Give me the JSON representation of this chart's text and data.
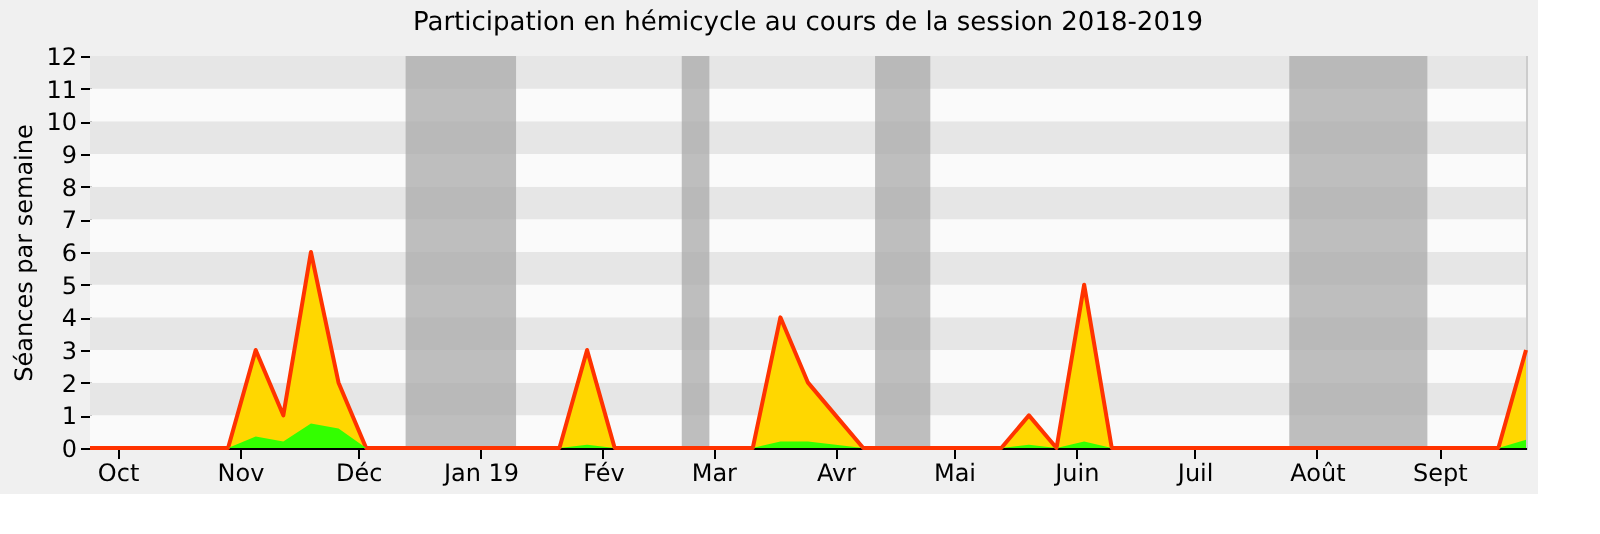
{
  "chart_data": {
    "type": "area",
    "title": "Participation en hémicycle au cours de la session 2018-2019",
    "ylabel": "Séances par semaine",
    "x": [
      "2018-09-24",
      "2018-10-01",
      "2018-10-08",
      "2018-10-15",
      "2018-10-22",
      "2018-10-29",
      "2018-11-05",
      "2018-11-12",
      "2018-11-19",
      "2018-11-26",
      "2018-12-03",
      "2018-12-10",
      "2018-12-17",
      "2018-12-24",
      "2018-12-31",
      "2019-01-07",
      "2019-01-14",
      "2019-01-21",
      "2019-01-28",
      "2019-02-04",
      "2019-02-11",
      "2019-02-18",
      "2019-02-25",
      "2019-03-04",
      "2019-03-11",
      "2019-03-18",
      "2019-03-25",
      "2019-04-01",
      "2019-04-08",
      "2019-04-15",
      "2019-04-22",
      "2019-04-29",
      "2019-05-06",
      "2019-05-13",
      "2019-05-20",
      "2019-05-27",
      "2019-06-03",
      "2019-06-10",
      "2019-06-17",
      "2019-06-24",
      "2019-07-01",
      "2019-07-08",
      "2019-07-15",
      "2019-07-22",
      "2019-07-29",
      "2019-08-05",
      "2019-08-12",
      "2019-08-19",
      "2019-08-26",
      "2019-09-02",
      "2019-09-09",
      "2019-09-16",
      "2019-09-23"
    ],
    "series": [
      {
        "color": "#ffd700",
        "values": [
          0,
          0,
          0,
          0,
          0,
          0,
          3,
          1,
          6,
          2,
          0,
          0,
          0,
          0,
          0,
          0,
          0,
          0,
          3,
          0,
          0,
          0,
          0,
          0,
          0,
          4,
          2,
          1,
          0,
          0,
          0,
          0,
          0,
          0,
          1,
          0,
          5,
          0,
          0,
          0,
          0,
          0,
          0,
          0,
          0,
          0,
          0,
          0,
          0,
          0,
          0,
          0,
          3
        ]
      },
      {
        "color": "#33ff00",
        "values": [
          0,
          0,
          0,
          0,
          0,
          0,
          0.35,
          0.2,
          0.75,
          0.6,
          0,
          0,
          0,
          0,
          0,
          0,
          0,
          0,
          0.1,
          0,
          0,
          0,
          0,
          0,
          0,
          0.2,
          0.2,
          0.1,
          0,
          0,
          0,
          0,
          0,
          0,
          0.1,
          0,
          0.2,
          0,
          0,
          0,
          0,
          0,
          0,
          0,
          0,
          0,
          0,
          0,
          0,
          0,
          0,
          0,
          0.25
        ]
      }
    ],
    "xlim": [
      "2018-09-24",
      "2019-09-23"
    ],
    "xticks": [
      {
        "value": "2018-10-01",
        "label": "Oct"
      },
      {
        "value": "2018-11-01",
        "label": "Nov"
      },
      {
        "value": "2018-12-01",
        "label": "Déc"
      },
      {
        "value": "2019-01-01",
        "label": "Jan 19"
      },
      {
        "value": "2019-02-01",
        "label": "Fév"
      },
      {
        "value": "2019-03-01",
        "label": "Mar"
      },
      {
        "value": "2019-04-01",
        "label": "Avr"
      },
      {
        "value": "2019-05-01",
        "label": "Mai"
      },
      {
        "value": "2019-06-01",
        "label": "Juin"
      },
      {
        "value": "2019-07-01",
        "label": "Juil"
      },
      {
        "value": "2019-08-01",
        "label": "Août"
      },
      {
        "value": "2019-09-01",
        "label": "Sept"
      }
    ],
    "ylim": [
      0,
      12
    ],
    "yticks": [
      0,
      1,
      2,
      3,
      4,
      5,
      6,
      7,
      8,
      9,
      10,
      11,
      12
    ],
    "bands": [
      {
        "axis": "x",
        "from": "2018-12-13",
        "to": "2019-01-10",
        "color": "#aaaaaa"
      },
      {
        "axis": "x",
        "from": "2019-02-21",
        "to": "2019-02-28",
        "color": "#aaaaaa"
      },
      {
        "axis": "x",
        "from": "2019-04-11",
        "to": "2019-04-25",
        "color": "#aaaaaa"
      },
      {
        "axis": "x",
        "from": "2019-07-25",
        "to": "2019-08-29",
        "color": "#aaaaaa"
      }
    ]
  }
}
